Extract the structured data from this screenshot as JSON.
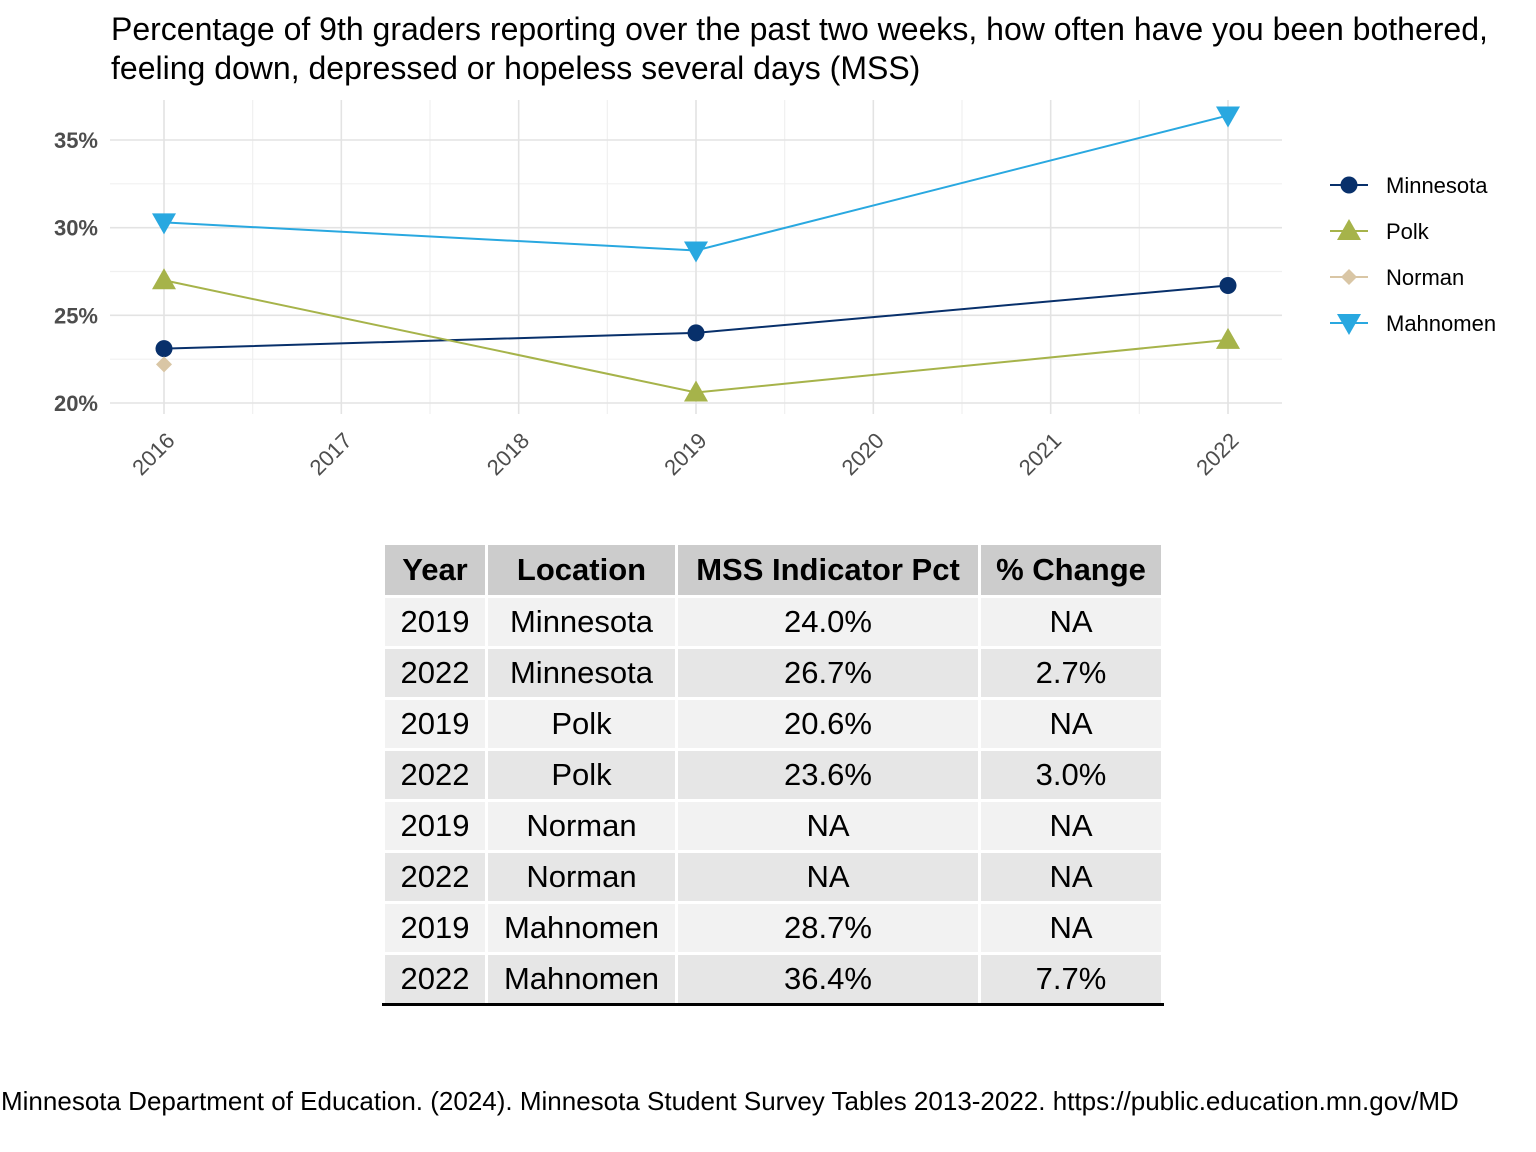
{
  "chart_data": {
    "type": "line",
    "title": "Percentage of 9th graders reporting over the past two weeks, how often have you been bothered, feeling down, depressed or hopeless several days (MSS)",
    "xlabel": "",
    "ylabel": "",
    "x": [
      2016,
      2017,
      2018,
      2019,
      2020,
      2021,
      2022
    ],
    "x_tick_labels": [
      "2016",
      "2017",
      "2018",
      "2019",
      "2020",
      "2021",
      "2022"
    ],
    "xlim": [
      2016,
      2022
    ],
    "ylim": [
      20,
      36.4
    ],
    "y_ticks": [
      20,
      25,
      30,
      35
    ],
    "y_tick_labels": [
      "20%",
      "25%",
      "30%",
      "35%"
    ],
    "grid": true,
    "legend_position": "right",
    "series": [
      {
        "name": "Minnesota",
        "color": "#08306b",
        "marker": "circle",
        "points": [
          [
            2016,
            23.1
          ],
          [
            2019,
            24.0
          ],
          [
            2022,
            26.7
          ]
        ]
      },
      {
        "name": "Polk",
        "color": "#a6b34a",
        "marker": "triangle-up",
        "points": [
          [
            2016,
            27.0
          ],
          [
            2019,
            20.6
          ],
          [
            2022,
            23.6
          ]
        ]
      },
      {
        "name": "Norman",
        "color": "#d9c6a5",
        "marker": "diamond",
        "points": [
          [
            2016,
            22.2
          ]
        ]
      },
      {
        "name": "Mahnomen",
        "color": "#29a8e0",
        "marker": "triangle-down",
        "points": [
          [
            2016,
            30.3
          ],
          [
            2019,
            28.7
          ],
          [
            2022,
            36.4
          ]
        ]
      }
    ]
  },
  "table": {
    "headers": [
      "Year",
      "Location",
      "MSS Indicator Pct",
      "% Change"
    ],
    "rows": [
      [
        "2019",
        "Minnesota",
        "24.0%",
        "NA"
      ],
      [
        "2022",
        "Minnesota",
        "26.7%",
        "2.7%"
      ],
      [
        "2019",
        "Polk",
        "20.6%",
        "NA"
      ],
      [
        "2022",
        "Polk",
        "23.6%",
        "3.0%"
      ],
      [
        "2019",
        "Norman",
        "NA",
        "NA"
      ],
      [
        "2022",
        "Norman",
        "NA",
        "NA"
      ],
      [
        "2019",
        "Mahnomen",
        "28.7%",
        "NA"
      ],
      [
        "2022",
        "Mahnomen",
        "36.4%",
        "7.7%"
      ]
    ]
  },
  "source": "Minnesota Department of Education. (2024). Minnesota Student Survey Tables 2013-2022. https://public.education.mn.gov/MD"
}
